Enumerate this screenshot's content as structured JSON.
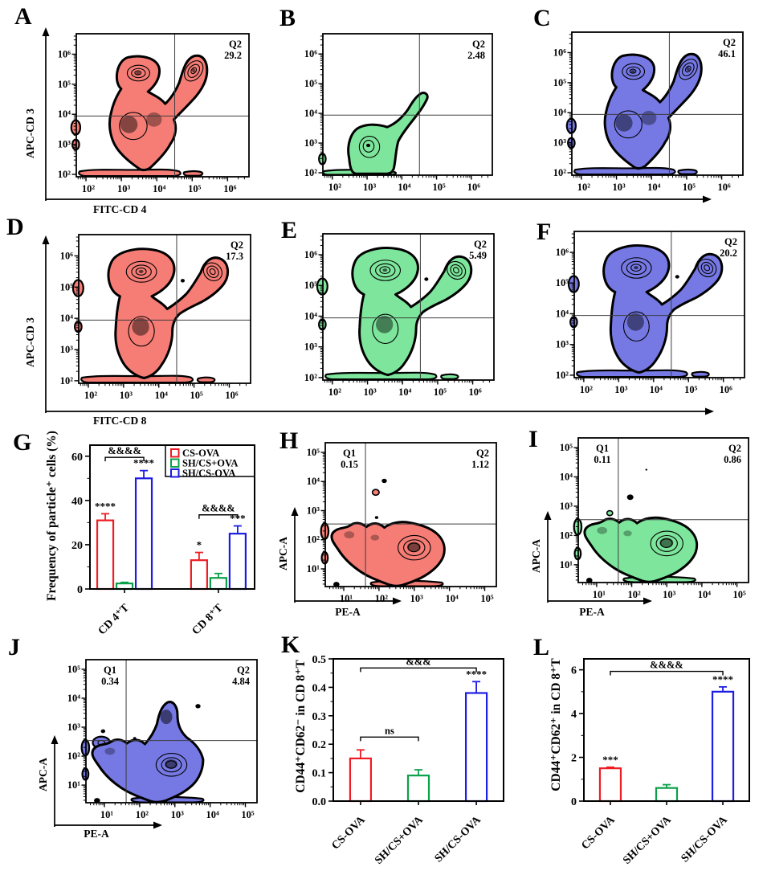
{
  "palette": {
    "red": "#ee1c23",
    "green": "#0ca04a",
    "blue": "#1c1ce4",
    "red_fill": "#f57d76",
    "green_fill": "#7de69c",
    "blue_fill": "#7679e4",
    "axis_line": "#000000",
    "gate_line": "#3d3d3d"
  },
  "log_ticks_2_6": [
    "10²",
    "10³",
    "10⁴",
    "10⁵",
    "10⁶"
  ],
  "log_ticks_1_5": [
    "10¹",
    "10²",
    "10³",
    "10⁴",
    "10⁵"
  ],
  "axes": {
    "row1": {
      "y_label": "APC-CD 3",
      "x_label": "FITC-CD 4"
    },
    "row2": {
      "y_label": "APC-CD 3",
      "x_label": "FITC-CD 8"
    },
    "small": {
      "y_label": "APC-A",
      "x_label": "PE-A"
    }
  },
  "flow_panels": {
    "A": {
      "letter": "A",
      "color": "red",
      "ticks": "t26",
      "quadrants": [
        {
          "name": "Q2",
          "value": "29.2"
        }
      ]
    },
    "B": {
      "letter": "B",
      "color": "green",
      "ticks": "t26",
      "quadrants": [
        {
          "name": "Q2",
          "value": "2.48"
        }
      ]
    },
    "C": {
      "letter": "C",
      "color": "blue",
      "ticks": "t26",
      "quadrants": [
        {
          "name": "Q2",
          "value": "46.1"
        }
      ]
    },
    "D": {
      "letter": "D",
      "color": "red",
      "ticks": "t26",
      "quadrants": [
        {
          "name": "Q2",
          "value": "17.3"
        }
      ]
    },
    "E": {
      "letter": "E",
      "color": "green",
      "ticks": "t26",
      "quadrants": [
        {
          "name": "Q2",
          "value": "5.49"
        }
      ]
    },
    "F": {
      "letter": "F",
      "color": "blue",
      "ticks": "t26",
      "quadrants": [
        {
          "name": "Q2",
          "value": "20.2"
        }
      ]
    },
    "H": {
      "letter": "H",
      "color": "red",
      "ticks": "t15",
      "quadrants": [
        {
          "name": "Q1",
          "value": "0.15"
        },
        {
          "name": "Q2",
          "value": "1.12"
        }
      ]
    },
    "I": {
      "letter": "I",
      "color": "green",
      "ticks": "t15",
      "quadrants": [
        {
          "name": "Q1",
          "value": "0.11"
        },
        {
          "name": "Q2",
          "value": "0.86"
        }
      ]
    },
    "J": {
      "letter": "J",
      "color": "blue",
      "ticks": "t15",
      "quadrants": [
        {
          "name": "Q1",
          "value": "0.34"
        },
        {
          "name": "Q2",
          "value": "4.84"
        }
      ]
    }
  },
  "chart_data": [
    {
      "letter": "G",
      "type": "bar",
      "ylabel": "Frequency of particle⁺ cells (%)",
      "categories": [
        "CD 4⁺T",
        "CD 8⁺T"
      ],
      "series": [
        {
          "name": "CS-OVA",
          "color": "red",
          "values": [
            31,
            13
          ],
          "errors": [
            3,
            3.5
          ],
          "sig": [
            "****",
            "*"
          ]
        },
        {
          "name": "SH/CS+OVA",
          "color": "green",
          "values": [
            2.5,
            5
          ],
          "errors": [
            0.5,
            2
          ],
          "sig": [
            "",
            ""
          ]
        },
        {
          "name": "SH/CS-OVA",
          "color": "blue",
          "values": [
            50,
            25
          ],
          "errors": [
            3.5,
            3.5
          ],
          "sig": [
            "****",
            "***"
          ]
        }
      ],
      "ylim": [
        0,
        65
      ],
      "ytick_values": [
        0,
        20,
        40,
        60
      ],
      "ytick_labels": [
        "0",
        "20",
        "40",
        "60"
      ],
      "grid": false,
      "legend_position": "top-right",
      "brackets": [
        {
          "category": 0,
          "from_series": 0,
          "to_series": 2,
          "label": "&&&&",
          "y": 59.5
        },
        {
          "category": 1,
          "from_series": 0,
          "to_series": 2,
          "label": "&&&&",
          "y": 33.5
        }
      ]
    },
    {
      "letter": "K",
      "type": "bar",
      "ylabel": "CD44⁺CD62⁻ in CD 8⁺T",
      "categories": [
        "CS-OVA",
        "SH/CS+OVA",
        "SH/CS-OVA"
      ],
      "series": [
        {
          "name": "groups",
          "colors": [
            "red",
            "green",
            "blue"
          ],
          "values": [
            0.15,
            0.09,
            0.38
          ],
          "errors": [
            0.03,
            0.02,
            0.04
          ],
          "sig": [
            "",
            "",
            "****"
          ]
        }
      ],
      "ylim": [
        0,
        0.5
      ],
      "ytick_values": [
        0,
        0.1,
        0.2,
        0.3,
        0.4,
        0.5
      ],
      "ytick_labels": [
        "0.0",
        "0.1",
        "0.2",
        "0.3",
        "0.4",
        "0.5"
      ],
      "grid": false,
      "brackets": [
        {
          "from": 0,
          "to": 1,
          "label": "ns",
          "y": 0.225
        },
        {
          "from": 0,
          "to": 2,
          "label": "&&&",
          "y": 0.468
        }
      ]
    },
    {
      "letter": "L",
      "type": "bar",
      "ylabel": "CD44⁺CD62⁺ in CD 8⁺T",
      "categories": [
        "CS-OVA",
        "SH/CS+OVA",
        "SH/CS-OVA"
      ],
      "series": [
        {
          "name": "groups",
          "colors": [
            "red",
            "green",
            "blue"
          ],
          "values": [
            1.5,
            0.6,
            5.0
          ],
          "errors": [
            0.05,
            0.15,
            0.22
          ],
          "sig": [
            "***",
            "",
            "****"
          ]
        }
      ],
      "ylim": [
        0,
        6.5
      ],
      "ytick_values": [
        0,
        2,
        4,
        6
      ],
      "ytick_labels": [
        "0",
        "2",
        "4",
        "6"
      ],
      "grid": false,
      "brackets": [
        {
          "from": 0,
          "to": 2,
          "label": "&&&&",
          "y": 5.93
        }
      ]
    }
  ]
}
